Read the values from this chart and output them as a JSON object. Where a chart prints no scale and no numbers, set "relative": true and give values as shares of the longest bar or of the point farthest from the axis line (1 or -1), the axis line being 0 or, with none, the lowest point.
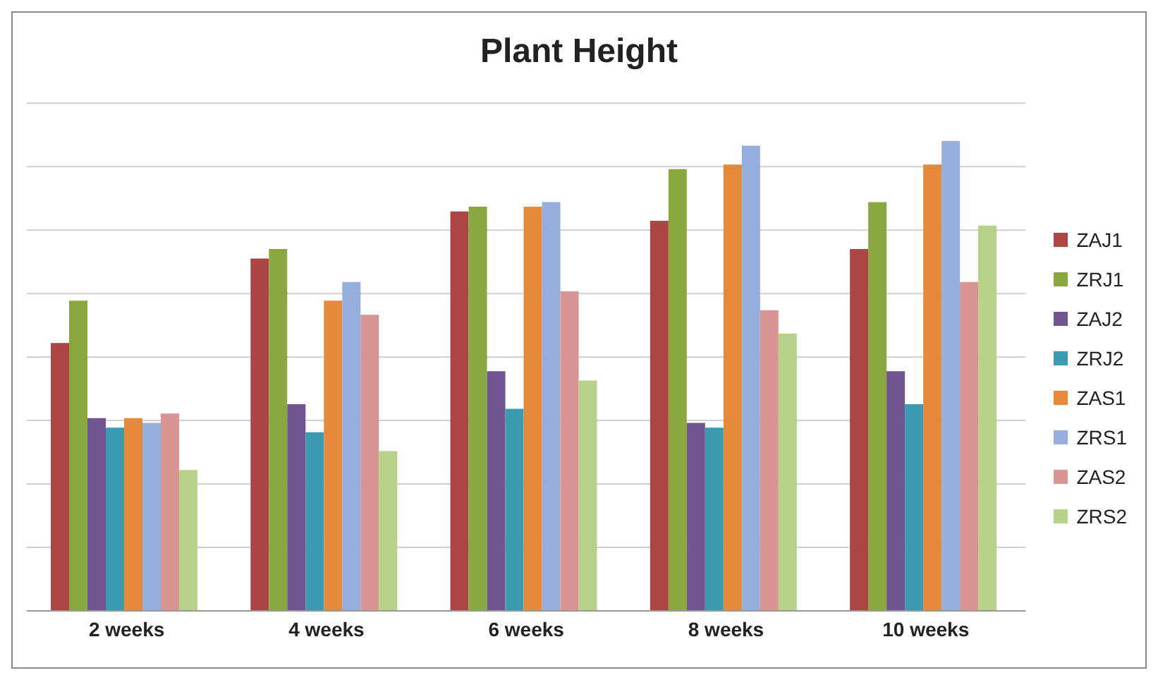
{
  "chart_data": {
    "type": "bar",
    "title": "Plant Height",
    "relative": true,
    "grid": "y",
    "legend": "right",
    "categories": [
      "2 weeks",
      "4 weeks",
      "6 weeks",
      "8 weeks",
      "10 weeks"
    ],
    "series": [
      {
        "name": "ZAJ1",
        "color": "#ab4645",
        "values": [
          0.57,
          0.75,
          0.85,
          0.83,
          0.77
        ]
      },
      {
        "name": "ZRJ1",
        "color": "#8aa83f",
        "values": [
          0.66,
          0.77,
          0.86,
          0.94,
          0.87
        ]
      },
      {
        "name": "ZAJ2",
        "color": "#705591",
        "values": [
          0.41,
          0.44,
          0.51,
          0.4,
          0.51
        ]
      },
      {
        "name": "ZRJ2",
        "color": "#3a9bb2",
        "values": [
          0.39,
          0.38,
          0.43,
          0.39,
          0.44
        ]
      },
      {
        "name": "ZAS1",
        "color": "#e5893a",
        "values": [
          0.41,
          0.66,
          0.86,
          0.95,
          0.95
        ]
      },
      {
        "name": "ZRS1",
        "color": "#95aedb",
        "values": [
          0.4,
          0.7,
          0.87,
          0.99,
          1
        ]
      },
      {
        "name": "ZAS2",
        "color": "#d99592",
        "values": [
          0.42,
          0.63,
          0.68,
          0.64,
          0.7
        ]
      },
      {
        "name": "ZRS2",
        "color": "#b7d18b",
        "values": [
          0.3,
          0.34,
          0.49,
          0.59,
          0.82
        ]
      }
    ]
  }
}
